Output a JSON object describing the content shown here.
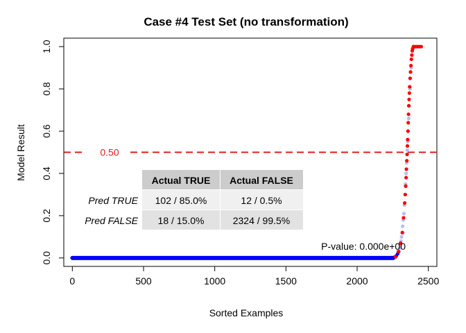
{
  "chart_data": {
    "type": "scatter",
    "title": "Case #4 Test Set (no transformation)",
    "xlabel": "Sorted Examples",
    "ylabel": "Model Result",
    "xlim": [
      -60,
      2560
    ],
    "ylim": [
      -0.04,
      1.04
    ],
    "xticks": [
      0,
      500,
      1000,
      1500,
      2000,
      2500
    ],
    "xtick_labels": [
      "0",
      "500",
      "1000",
      "1500",
      "2000",
      "2500"
    ],
    "yticks": [
      0.0,
      0.2,
      0.4,
      0.6,
      0.8,
      1.0
    ],
    "ytick_labels": [
      "0.0",
      "0.2",
      "0.4",
      "0.6",
      "0.8",
      "1.0"
    ],
    "threshold": {
      "value": 0.5,
      "label": "0.50",
      "color": "#e41a1c"
    },
    "pvalue_label": "P-value: 0.000e+00",
    "series": [
      {
        "name": "Actual FALSE",
        "color": "#0000ff",
        "x": [
          0,
          200,
          500,
          1000,
          1500,
          2000,
          2200,
          2260,
          2275,
          2285,
          2292,
          2298,
          2303,
          2308,
          2312,
          2316,
          2320,
          2324,
          2328,
          2332,
          2336,
          2340,
          2344,
          2348,
          2350,
          2352,
          2355,
          2358,
          2362,
          2366,
          2372,
          2380
        ],
        "y": [
          0.0,
          0.0,
          0.0,
          0.0,
          0.0,
          0.0,
          0.0,
          0.003,
          0.01,
          0.02,
          0.03,
          0.045,
          0.06,
          0.08,
          0.1,
          0.12,
          0.15,
          0.18,
          0.21,
          0.25,
          0.3,
          0.35,
          0.4,
          0.45,
          0.49,
          0.51,
          0.55,
          0.6,
          0.66,
          0.72,
          0.8,
          0.9
        ]
      },
      {
        "name": "Actual TRUE",
        "color": "#ff0000",
        "x": [
          2270,
          2290,
          2305,
          2318,
          2326,
          2334,
          2338,
          2341,
          2344,
          2346,
          2349,
          2351,
          2353,
          2355,
          2357,
          2359,
          2361,
          2363,
          2365,
          2367,
          2369,
          2372,
          2375,
          2378,
          2381,
          2384,
          2387,
          2390,
          2395,
          2400,
          2410,
          2420,
          2430,
          2440,
          2450
        ],
        "y": [
          0.005,
          0.03,
          0.07,
          0.12,
          0.19,
          0.26,
          0.3,
          0.34,
          0.38,
          0.42,
          0.46,
          0.49,
          0.53,
          0.56,
          0.6,
          0.64,
          0.68,
          0.72,
          0.75,
          0.78,
          0.81,
          0.85,
          0.88,
          0.91,
          0.94,
          0.96,
          0.98,
          0.99,
          1.0,
          1.0,
          1.0,
          1.0,
          1.0,
          1.0,
          1.0
        ]
      }
    ],
    "table": {
      "col_headers": [
        "Actual TRUE",
        "Actual FALSE"
      ],
      "rows": [
        {
          "label": "Pred TRUE",
          "cells": [
            "102 / 85.0%",
            "12 / 0.5%"
          ]
        },
        {
          "label": "Pred FALSE",
          "cells": [
            "18 / 15.0%",
            "2324 / 99.5%"
          ]
        }
      ]
    }
  }
}
